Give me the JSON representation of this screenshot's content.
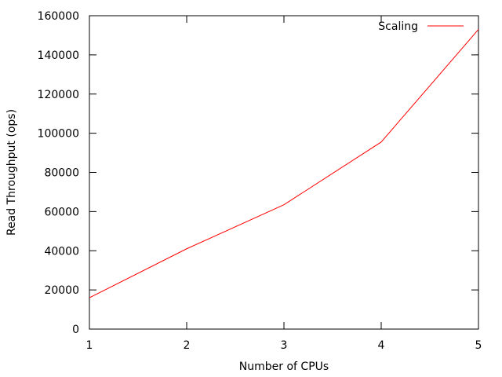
{
  "chart_data": {
    "type": "line",
    "title": "",
    "xlabel": "Number of CPUs",
    "ylabel": "Read Throughput (ops)",
    "xlim": [
      1,
      5
    ],
    "ylim": [
      0,
      160000
    ],
    "xticks": [
      1,
      2,
      3,
      4,
      5
    ],
    "yticks": [
      0,
      20000,
      40000,
      60000,
      80000,
      100000,
      120000,
      140000,
      160000
    ],
    "grid": false,
    "legend_position": "top-right",
    "series": [
      {
        "name": "Scaling",
        "color": "#ff0000",
        "x": [
          1,
          2,
          3,
          4,
          5
        ],
        "y": [
          16000,
          41000,
          63500,
          95500,
          153000
        ]
      }
    ]
  }
}
